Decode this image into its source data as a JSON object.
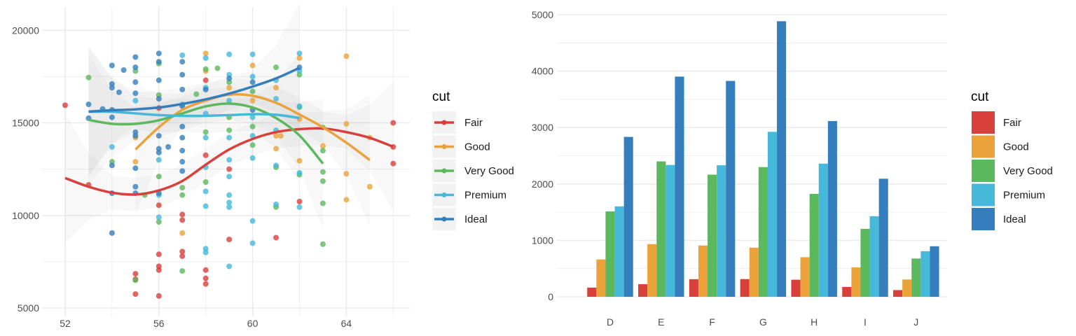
{
  "colors": {
    "Fair": "#d7403b",
    "Good": "#eca23a",
    "Very Good": "#5cb85c",
    "Premium": "#46b8da",
    "Ideal": "#357ebd"
  },
  "chart_data": [
    {
      "type": "scatter",
      "xlabel": "",
      "ylabel": "",
      "xlim": [
        51.7,
        66.4
      ],
      "ylim": [
        4900,
        21200
      ],
      "xticks": [
        "52",
        "56",
        "60",
        "64"
      ],
      "yticks": [
        "5000",
        "10000",
        "15000",
        "20000"
      ],
      "grid": true,
      "legend": {
        "title": "cut",
        "position": "right",
        "entries": [
          "Fair",
          "Good",
          "Very Good",
          "Premium",
          "Ideal"
        ]
      },
      "points": [
        [
          52,
          15950,
          "Fair"
        ],
        [
          53,
          11650,
          "Fair"
        ],
        [
          55,
          6850,
          "Fair"
        ],
        [
          55,
          6550,
          "Fair"
        ],
        [
          55,
          5750,
          "Fair"
        ],
        [
          56,
          10550,
          "Fair"
        ],
        [
          56,
          7900,
          "Fair"
        ],
        [
          56,
          7250,
          "Fair"
        ],
        [
          56,
          7050,
          "Fair"
        ],
        [
          56,
          5650,
          "Fair"
        ],
        [
          57,
          10050,
          "Fair"
        ],
        [
          57,
          9750,
          "Fair"
        ],
        [
          57,
          8050,
          "Fair"
        ],
        [
          57,
          7800,
          "Fair"
        ],
        [
          58,
          13250,
          "Fair"
        ],
        [
          58,
          17300,
          "Fair"
        ],
        [
          58,
          7050,
          "Fair"
        ],
        [
          58,
          6600,
          "Fair"
        ],
        [
          58,
          6300,
          "Fair"
        ],
        [
          59,
          12500,
          "Fair"
        ],
        [
          59,
          8700,
          "Fair"
        ],
        [
          61,
          8800,
          "Fair"
        ],
        [
          62,
          10750,
          "Fair"
        ],
        [
          66,
          15000,
          "Fair"
        ],
        [
          66,
          13700,
          "Fair"
        ],
        [
          66,
          12800,
          "Fair"
        ],
        [
          56,
          15800,
          "Fair"
        ],
        [
          55,
          14200,
          "Good"
        ],
        [
          55,
          12900,
          "Good"
        ],
        [
          57,
          9050,
          "Good"
        ],
        [
          58,
          18750,
          "Good"
        ],
        [
          58,
          17800,
          "Good"
        ],
        [
          59,
          16900,
          "Good"
        ],
        [
          60,
          16200,
          "Good"
        ],
        [
          60,
          18100,
          "Good"
        ],
        [
          61,
          14300,
          "Good"
        ],
        [
          61,
          13600,
          "Good"
        ],
        [
          61,
          16900,
          "Good"
        ],
        [
          62,
          18500,
          "Good"
        ],
        [
          62,
          15200,
          "Good"
        ],
        [
          62,
          12950,
          "Good"
        ],
        [
          63,
          13750,
          "Good"
        ],
        [
          64,
          18600,
          "Good"
        ],
        [
          64,
          14950,
          "Good"
        ],
        [
          64,
          12250,
          "Good"
        ],
        [
          64,
          10850,
          "Good"
        ],
        [
          65,
          14200,
          "Good"
        ],
        [
          65,
          11550,
          "Good"
        ],
        [
          61.2,
          14300,
          "Good"
        ],
        [
          53,
          17450,
          "Very Good"
        ],
        [
          54,
          12900,
          "Very Good"
        ],
        [
          55,
          17800,
          "Very Good"
        ],
        [
          55,
          6500,
          "Very Good"
        ],
        [
          55.4,
          11100,
          "Very Good"
        ],
        [
          56,
          18200,
          "Very Good"
        ],
        [
          56,
          16500,
          "Very Good"
        ],
        [
          56,
          12100,
          "Very Good"
        ],
        [
          56,
          9650,
          "Very Good"
        ],
        [
          57,
          11500,
          "Very Good"
        ],
        [
          57,
          11100,
          "Very Good"
        ],
        [
          57,
          7000,
          "Very Good"
        ],
        [
          57.6,
          16550,
          "Very Good"
        ],
        [
          58,
          17900,
          "Very Good"
        ],
        [
          58,
          14500,
          "Very Good"
        ],
        [
          58,
          11800,
          "Very Good"
        ],
        [
          58.5,
          17950,
          "Very Good"
        ],
        [
          59,
          17200,
          "Very Good"
        ],
        [
          59,
          15300,
          "Very Good"
        ],
        [
          59,
          14600,
          "Very Good"
        ],
        [
          60,
          16700,
          "Very Good"
        ],
        [
          60,
          14800,
          "Very Good"
        ],
        [
          60,
          13800,
          "Very Good"
        ],
        [
          61,
          18000,
          "Very Good"
        ],
        [
          61,
          12600,
          "Very Good"
        ],
        [
          61,
          10450,
          "Very Good"
        ],
        [
          62,
          17600,
          "Very Good"
        ],
        [
          62,
          15850,
          "Very Good"
        ],
        [
          62,
          12200,
          "Very Good"
        ],
        [
          63,
          14750,
          "Very Good"
        ],
        [
          63,
          13500,
          "Very Good"
        ],
        [
          63,
          12350,
          "Very Good"
        ],
        [
          63,
          11850,
          "Very Good"
        ],
        [
          63,
          10650,
          "Very Good"
        ],
        [
          63,
          8450,
          "Very Good"
        ],
        [
          54,
          13700,
          "Premium"
        ],
        [
          55,
          16200,
          "Premium"
        ],
        [
          56,
          13000,
          "Premium"
        ],
        [
          56,
          11100,
          "Premium"
        ],
        [
          56,
          9900,
          "Premium"
        ],
        [
          57,
          18650,
          "Premium"
        ],
        [
          57,
          16000,
          "Premium"
        ],
        [
          58,
          18500,
          "Premium"
        ],
        [
          58,
          16900,
          "Premium"
        ],
        [
          58,
          15500,
          "Premium"
        ],
        [
          58,
          14200,
          "Premium"
        ],
        [
          58,
          12600,
          "Premium"
        ],
        [
          58,
          11300,
          "Premium"
        ],
        [
          58,
          10500,
          "Premium"
        ],
        [
          58,
          8200,
          "Premium"
        ],
        [
          58,
          8000,
          "Premium"
        ],
        [
          59,
          18700,
          "Premium"
        ],
        [
          59,
          17600,
          "Premium"
        ],
        [
          59,
          16200,
          "Premium"
        ],
        [
          59,
          14200,
          "Premium"
        ],
        [
          59,
          13000,
          "Premium"
        ],
        [
          59,
          12100,
          "Premium"
        ],
        [
          59,
          11100,
          "Premium"
        ],
        [
          59,
          10700,
          "Premium"
        ],
        [
          59,
          10450,
          "Premium"
        ],
        [
          59,
          7250,
          "Premium"
        ],
        [
          60,
          18700,
          "Premium"
        ],
        [
          60,
          17500,
          "Premium"
        ],
        [
          60,
          15300,
          "Premium"
        ],
        [
          60,
          14300,
          "Premium"
        ],
        [
          60,
          13100,
          "Premium"
        ],
        [
          60,
          9700,
          "Premium"
        ],
        [
          60,
          8500,
          "Premium"
        ],
        [
          61,
          17300,
          "Premium"
        ],
        [
          61,
          16300,
          "Premium"
        ],
        [
          61,
          14600,
          "Premium"
        ],
        [
          61,
          12700,
          "Premium"
        ],
        [
          61,
          10600,
          "Premium"
        ],
        [
          62,
          18750,
          "Premium"
        ],
        [
          62,
          17800,
          "Premium"
        ],
        [
          62,
          15900,
          "Premium"
        ],
        [
          62,
          12300,
          "Premium"
        ],
        [
          62,
          10450,
          "Premium"
        ],
        [
          53,
          16000,
          "Ideal"
        ],
        [
          53,
          15250,
          "Ideal"
        ],
        [
          54,
          18100,
          "Ideal"
        ],
        [
          54,
          17100,
          "Ideal"
        ],
        [
          54,
          16900,
          "Ideal"
        ],
        [
          54,
          15700,
          "Ideal"
        ],
        [
          54,
          15300,
          "Ideal"
        ],
        [
          54,
          12700,
          "Ideal"
        ],
        [
          54,
          11200,
          "Ideal"
        ],
        [
          54,
          9050,
          "Ideal"
        ],
        [
          53.6,
          15750,
          "Ideal"
        ],
        [
          54.3,
          16650,
          "Ideal"
        ],
        [
          54.5,
          17850,
          "Ideal"
        ],
        [
          55,
          18550,
          "Ideal"
        ],
        [
          55,
          18000,
          "Ideal"
        ],
        [
          55,
          17200,
          "Ideal"
        ],
        [
          55,
          16600,
          "Ideal"
        ],
        [
          55,
          14500,
          "Ideal"
        ],
        [
          55,
          14300,
          "Ideal"
        ],
        [
          55,
          12550,
          "Ideal"
        ],
        [
          55,
          11550,
          "Ideal"
        ],
        [
          55,
          11200,
          "Ideal"
        ],
        [
          56,
          18750,
          "Ideal"
        ],
        [
          56,
          18300,
          "Ideal"
        ],
        [
          56,
          17300,
          "Ideal"
        ],
        [
          56,
          16300,
          "Ideal"
        ],
        [
          56,
          14300,
          "Ideal"
        ],
        [
          56,
          13600,
          "Ideal"
        ],
        [
          56,
          13400,
          "Ideal"
        ],
        [
          56,
          11200,
          "Ideal"
        ],
        [
          56.4,
          13700,
          "Ideal"
        ],
        [
          57,
          18300,
          "Ideal"
        ],
        [
          57,
          17600,
          "Ideal"
        ],
        [
          57,
          16800,
          "Ideal"
        ],
        [
          57,
          15900,
          "Ideal"
        ],
        [
          57,
          14800,
          "Ideal"
        ],
        [
          57,
          14200,
          "Ideal"
        ],
        [
          57,
          13500,
          "Ideal"
        ],
        [
          57,
          12900,
          "Ideal"
        ],
        [
          57,
          12400,
          "Ideal"
        ],
        [
          58,
          16800,
          "Ideal"
        ],
        [
          59,
          17400,
          "Ideal"
        ],
        [
          60,
          17200,
          "Ideal"
        ],
        [
          60,
          15700,
          "Ideal"
        ],
        [
          62,
          18000,
          "Ideal"
        ]
      ],
      "smooth": [
        {
          "name": "Fair",
          "x": [
            52,
            53,
            54,
            55,
            56,
            57,
            58,
            59,
            60,
            61,
            62,
            63,
            64,
            65,
            66
          ],
          "y": [
            12020,
            11550,
            11230,
            11130,
            11350,
            11860,
            12740,
            13560,
            14130,
            14500,
            14660,
            14700,
            14500,
            14190,
            13710
          ]
        },
        {
          "name": "Good",
          "x": [
            55,
            56,
            57,
            58,
            59,
            60,
            61,
            62,
            63,
            64,
            65
          ],
          "y": [
            13560,
            14760,
            15700,
            16200,
            16520,
            16460,
            16080,
            15450,
            14760,
            13930,
            12990
          ]
        },
        {
          "name": "Very Good",
          "x": [
            53,
            54,
            55,
            56,
            57,
            58,
            59,
            60,
            61,
            62,
            63
          ],
          "y": [
            15160,
            14950,
            14950,
            15140,
            15510,
            15890,
            16040,
            15830,
            15260,
            14320,
            12800
          ]
        },
        {
          "name": "Premium",
          "x": [
            53,
            54,
            55,
            56,
            57,
            58,
            59,
            60,
            61,
            62
          ],
          "y": [
            15600,
            15600,
            15510,
            15420,
            15380,
            15380,
            15420,
            15470,
            15440,
            15260
          ]
        },
        {
          "name": "Ideal",
          "x": [
            53,
            54,
            55,
            56,
            57,
            58,
            59,
            60,
            61,
            62
          ],
          "y": [
            15610,
            15680,
            15730,
            15830,
            16020,
            16270,
            16580,
            16960,
            17400,
            17970
          ]
        }
      ]
    },
    {
      "type": "bar",
      "xlabel": "",
      "ylabel": "",
      "categories": [
        "D",
        "E",
        "F",
        "G",
        "H",
        "I",
        "J"
      ],
      "ylim": [
        0,
        5000
      ],
      "yticks": [
        "0",
        "1000",
        "2000",
        "3000",
        "4000",
        "5000"
      ],
      "grid": true,
      "legend": {
        "title": "cut",
        "position": "right",
        "entries": [
          "Fair",
          "Good",
          "Very Good",
          "Premium",
          "Ideal"
        ]
      },
      "series": [
        {
          "name": "Fair",
          "values": [
            163,
            224,
            312,
            314,
            303,
            175,
            119
          ]
        },
        {
          "name": "Good",
          "values": [
            662,
            933,
            909,
            871,
            702,
            522,
            307
          ]
        },
        {
          "name": "Very Good",
          "values": [
            1513,
            2400,
            2164,
            2299,
            1824,
            1204,
            678
          ]
        },
        {
          "name": "Premium",
          "values": [
            1603,
            2337,
            2331,
            2924,
            2360,
            1428,
            808
          ]
        },
        {
          "name": "Ideal",
          "values": [
            2834,
            3903,
            3826,
            4884,
            3115,
            2093,
            896
          ]
        }
      ]
    }
  ]
}
